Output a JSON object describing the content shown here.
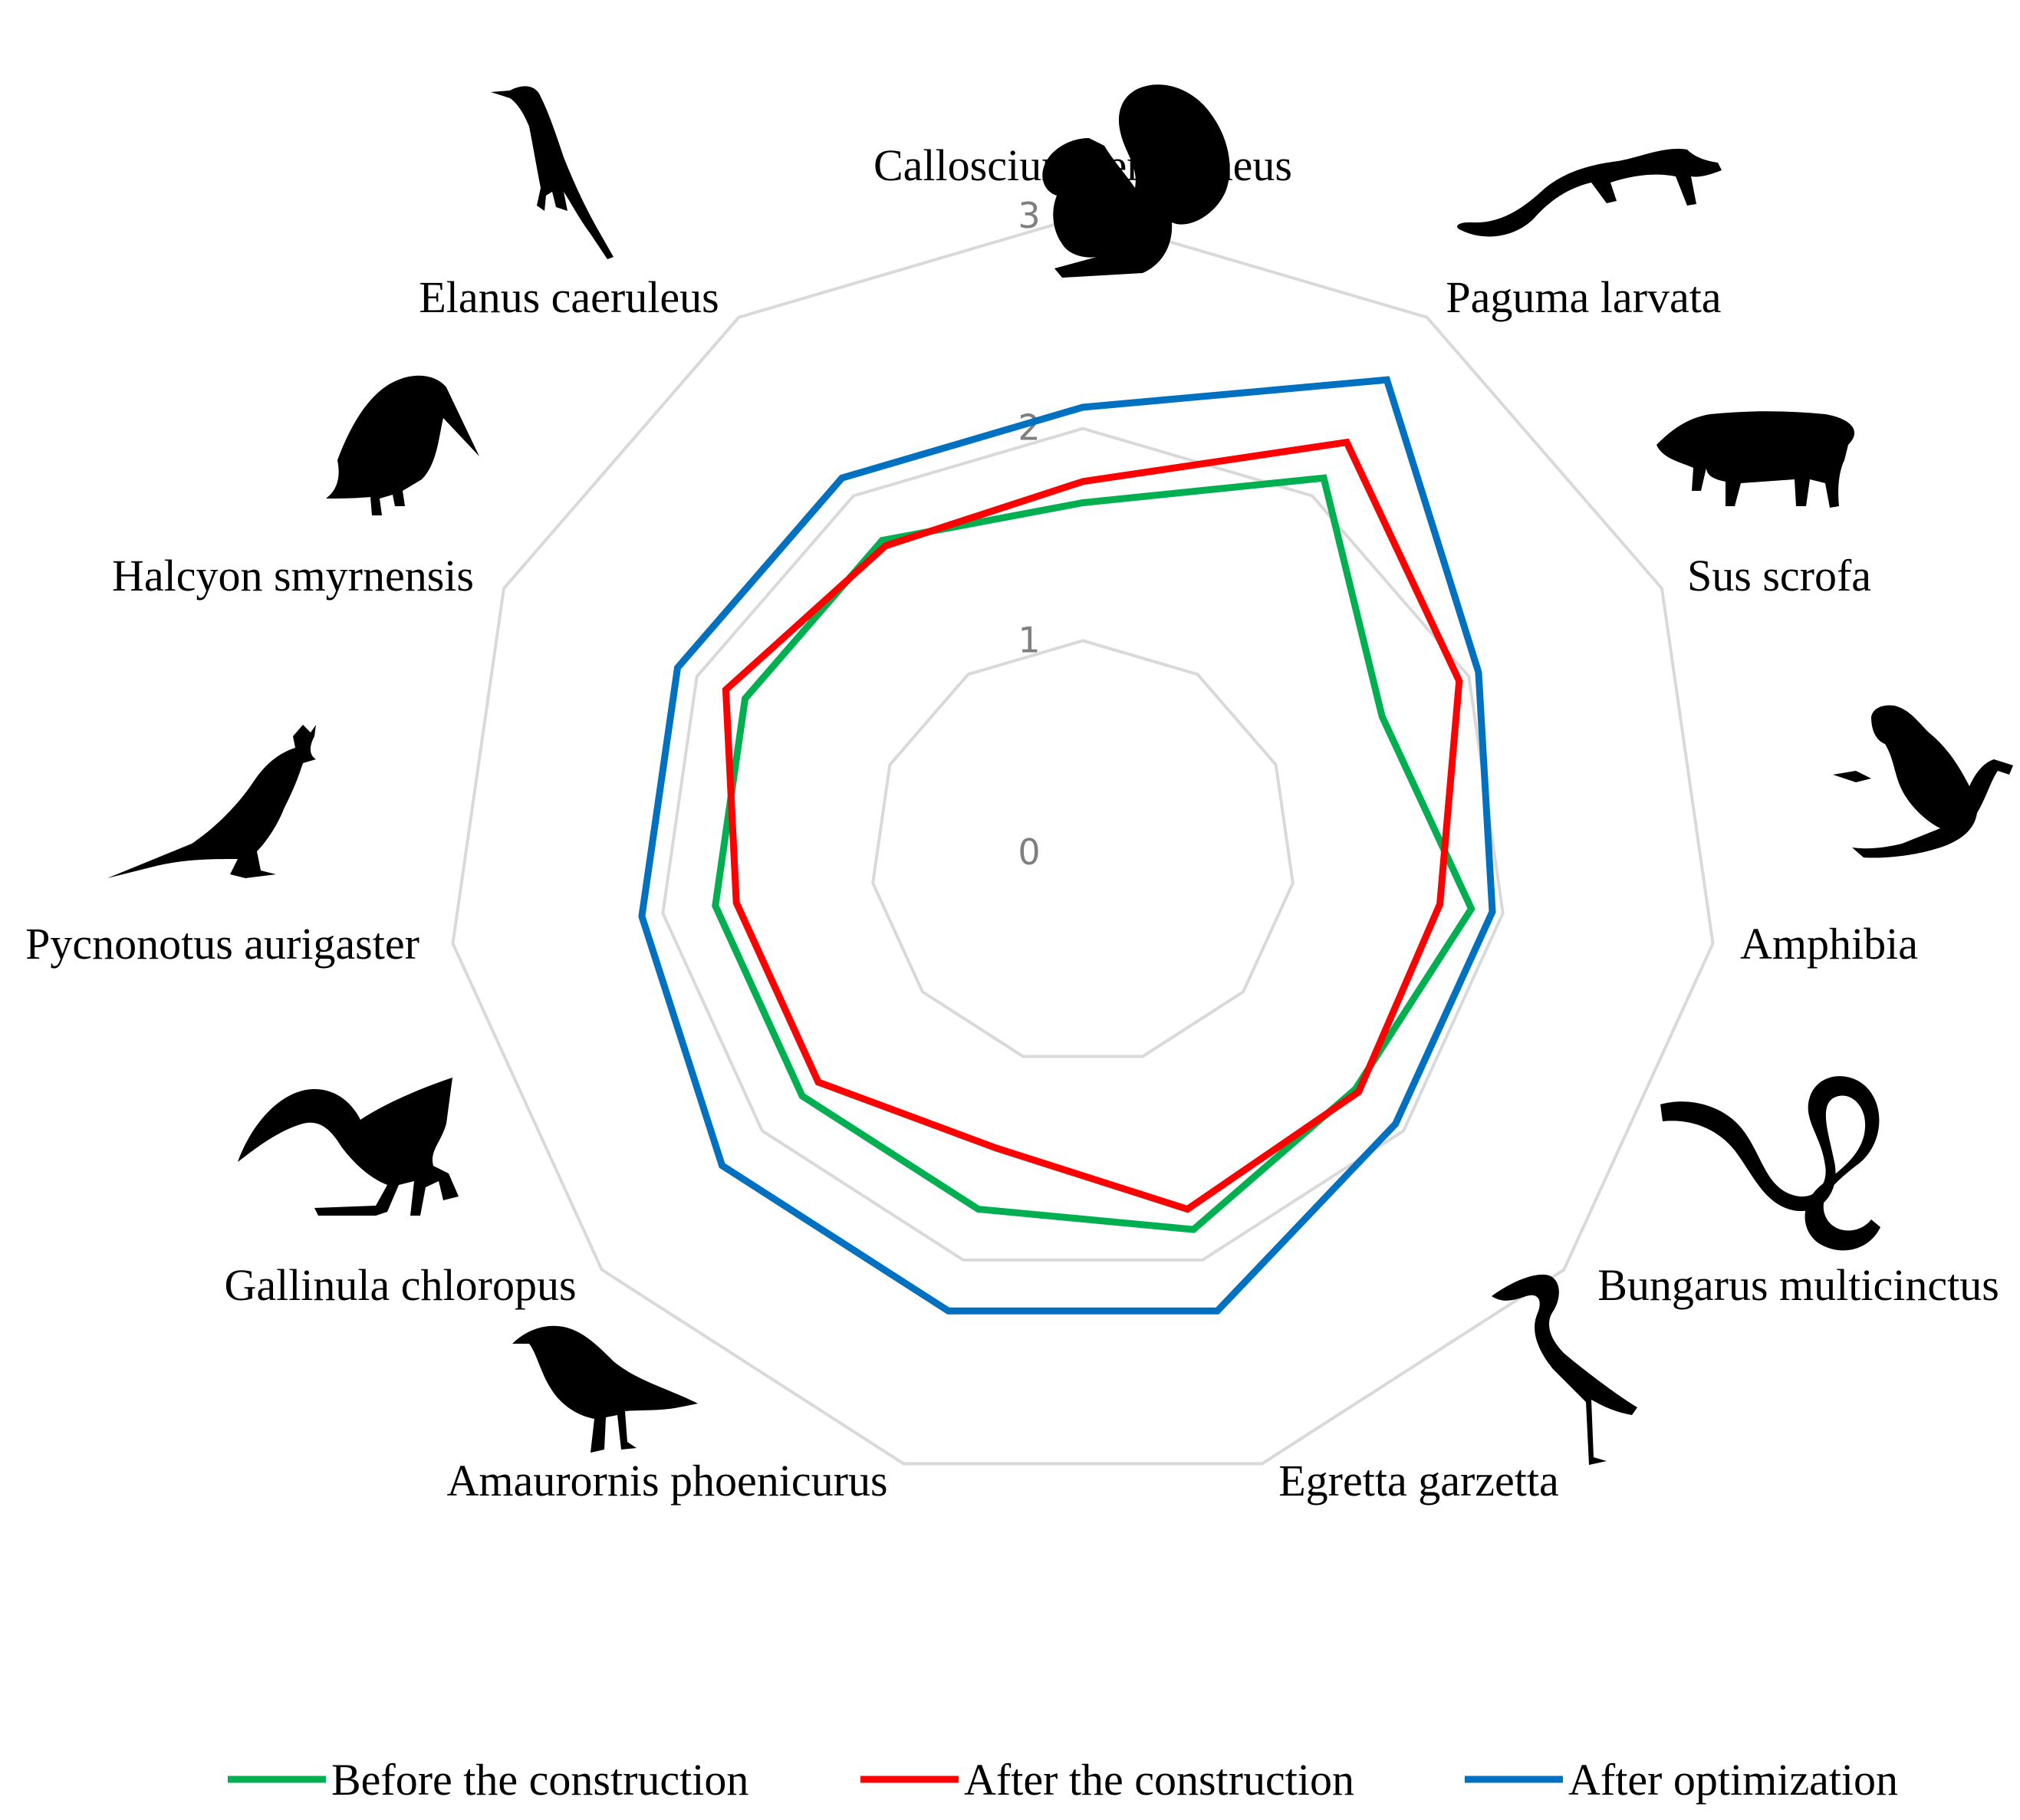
{
  "chart_data": {
    "type": "radar",
    "categories": [
      "Callosciurus erythraeus",
      "Paguma larvata",
      "Sus scrofa",
      "Amphibia",
      "Bungarus multicinctus",
      "Egretta garzetta",
      "Amaurornis phoenicurus",
      "Gallinula chloropus",
      "Pycnonotus aurigaster",
      "Halcyon smyrnensis",
      "Elanus caeruleus"
    ],
    "rlim": [
      0,
      3
    ],
    "ticks": [
      "0",
      "1",
      "2",
      "3"
    ],
    "grid": true,
    "legend_position": "bottom",
    "series": [
      {
        "name": "Before the construction",
        "color": "#00b050",
        "values": [
          1.65,
          2.1,
          1.55,
          1.85,
          1.7,
          1.85,
          1.75,
          1.75,
          1.75,
          1.75,
          1.75
        ]
      },
      {
        "name": "After the construction",
        "color": "#ff0000",
        "values": [
          1.75,
          2.3,
          1.95,
          1.7,
          1.72,
          1.75,
          1.45,
          1.65,
          1.65,
          1.85,
          1.72
        ]
      },
      {
        "name": "After optimization",
        "color": "#0070c0",
        "values": [
          2.1,
          2.65,
          2.05,
          1.95,
          1.95,
          2.25,
          2.25,
          2.25,
          2.1,
          2.1,
          2.1
        ]
      }
    ]
  },
  "icons": [
    "squirrel-icon",
    "civet-icon",
    "boar-icon",
    "frog-icon",
    "snake-icon",
    "egret-icon",
    "waterhen-icon",
    "moorhen-icon",
    "bulbul-icon",
    "kingfisher-icon",
    "kite-icon"
  ]
}
